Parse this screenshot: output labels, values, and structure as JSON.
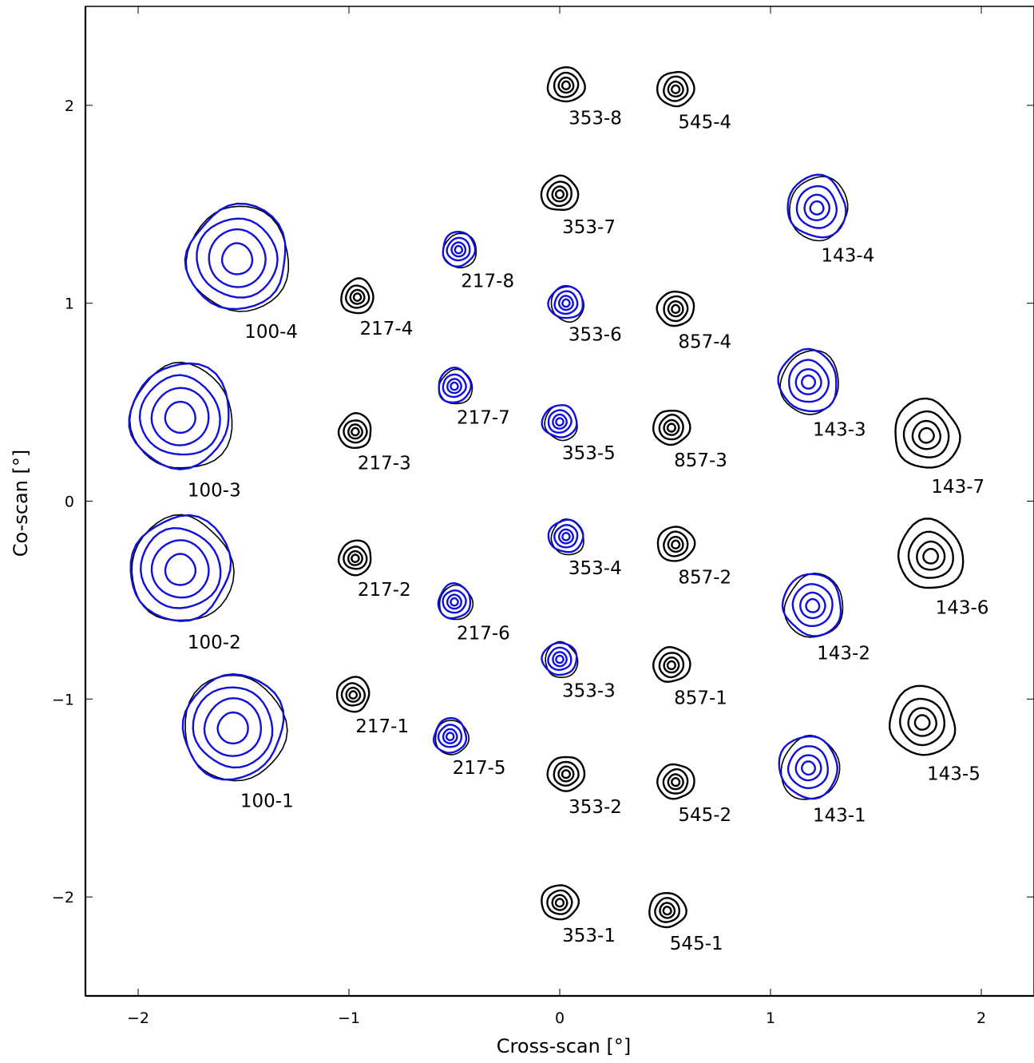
{
  "chart_data": {
    "type": "contour",
    "xlabel": "Cross-scan [°]",
    "ylabel": "Co-scan [°]",
    "xlim": [
      -2.25,
      2.25
    ],
    "ylim": [
      -2.5,
      2.5
    ],
    "xticks": [
      -2,
      -1,
      0,
      1,
      2
    ],
    "yticks": [
      -2,
      -1,
      0,
      1,
      2
    ],
    "xtick_labels": [
      "−2",
      "−1",
      "0",
      "1",
      "2"
    ],
    "ytick_labels": [
      "−2",
      "−1",
      "0",
      "1",
      "2"
    ],
    "grid": false,
    "colors": {
      "black": "#000000",
      "blue": "#1010dd"
    },
    "detectors": [
      {
        "name": "100-1",
        "x": -1.55,
        "y": -1.15,
        "color": "blue",
        "size": 0.46
      },
      {
        "name": "100-2",
        "x": -1.8,
        "y": -0.35,
        "color": "blue",
        "size": 0.46
      },
      {
        "name": "100-3",
        "x": -1.8,
        "y": 0.42,
        "color": "blue",
        "size": 0.46
      },
      {
        "name": "100-4",
        "x": -1.53,
        "y": 1.22,
        "color": "blue",
        "size": 0.46
      },
      {
        "name": "143-1",
        "x": 1.18,
        "y": -1.35,
        "color": "blue",
        "size": 0.27
      },
      {
        "name": "143-2",
        "x": 1.2,
        "y": -0.53,
        "color": "blue",
        "size": 0.27
      },
      {
        "name": "143-3",
        "x": 1.18,
        "y": 0.6,
        "color": "blue",
        "size": 0.27
      },
      {
        "name": "143-4",
        "x": 1.22,
        "y": 1.48,
        "color": "blue",
        "size": 0.27
      },
      {
        "name": "143-5",
        "x": 1.72,
        "y": -1.12,
        "color": "black",
        "size": 0.3
      },
      {
        "name": "143-6",
        "x": 1.76,
        "y": -0.28,
        "color": "black",
        "size": 0.3
      },
      {
        "name": "143-7",
        "x": 1.74,
        "y": 0.33,
        "color": "black",
        "size": 0.3
      },
      {
        "name": "217-1",
        "x": -0.98,
        "y": -0.98,
        "color": "black",
        "size": 0.15
      },
      {
        "name": "217-2",
        "x": -0.97,
        "y": -0.29,
        "color": "black",
        "size": 0.15
      },
      {
        "name": "217-3",
        "x": -0.97,
        "y": 0.35,
        "color": "black",
        "size": 0.15
      },
      {
        "name": "217-4",
        "x": -0.96,
        "y": 1.03,
        "color": "black",
        "size": 0.15
      },
      {
        "name": "217-5",
        "x": -0.52,
        "y": -1.19,
        "color": "blue",
        "size": 0.15
      },
      {
        "name": "217-6",
        "x": -0.5,
        "y": -0.51,
        "color": "blue",
        "size": 0.15
      },
      {
        "name": "217-7",
        "x": -0.5,
        "y": 0.58,
        "color": "blue",
        "size": 0.15
      },
      {
        "name": "217-8",
        "x": -0.48,
        "y": 1.27,
        "color": "blue",
        "size": 0.15
      },
      {
        "name": "353-1",
        "x": 0.0,
        "y": -2.03,
        "color": "black",
        "size": 0.16
      },
      {
        "name": "353-2",
        "x": 0.03,
        "y": -1.38,
        "color": "black",
        "size": 0.16
      },
      {
        "name": "353-3",
        "x": 0.0,
        "y": -0.8,
        "color": "blue",
        "size": 0.15
      },
      {
        "name": "353-4",
        "x": 0.03,
        "y": -0.18,
        "color": "blue",
        "size": 0.15
      },
      {
        "name": "353-5",
        "x": 0.0,
        "y": 0.4,
        "color": "blue",
        "size": 0.15
      },
      {
        "name": "353-6",
        "x": 0.03,
        "y": 1.0,
        "color": "blue",
        "size": 0.15
      },
      {
        "name": "353-7",
        "x": 0.0,
        "y": 1.55,
        "color": "black",
        "size": 0.16
      },
      {
        "name": "353-8",
        "x": 0.03,
        "y": 2.1,
        "color": "black",
        "size": 0.16
      },
      {
        "name": "545-1",
        "x": 0.51,
        "y": -2.07,
        "color": "black",
        "size": 0.16
      },
      {
        "name": "545-2",
        "x": 0.55,
        "y": -1.42,
        "color": "black",
        "size": 0.16
      },
      {
        "name": "545-4",
        "x": 0.55,
        "y": 2.08,
        "color": "black",
        "size": 0.16
      },
      {
        "name": "857-1",
        "x": 0.53,
        "y": -0.83,
        "color": "black",
        "size": 0.16
      },
      {
        "name": "857-2",
        "x": 0.55,
        "y": -0.22,
        "color": "black",
        "size": 0.16
      },
      {
        "name": "857-3",
        "x": 0.53,
        "y": 0.37,
        "color": "black",
        "size": 0.16
      },
      {
        "name": "857-4",
        "x": 0.55,
        "y": 0.97,
        "color": "black",
        "size": 0.16
      }
    ]
  }
}
